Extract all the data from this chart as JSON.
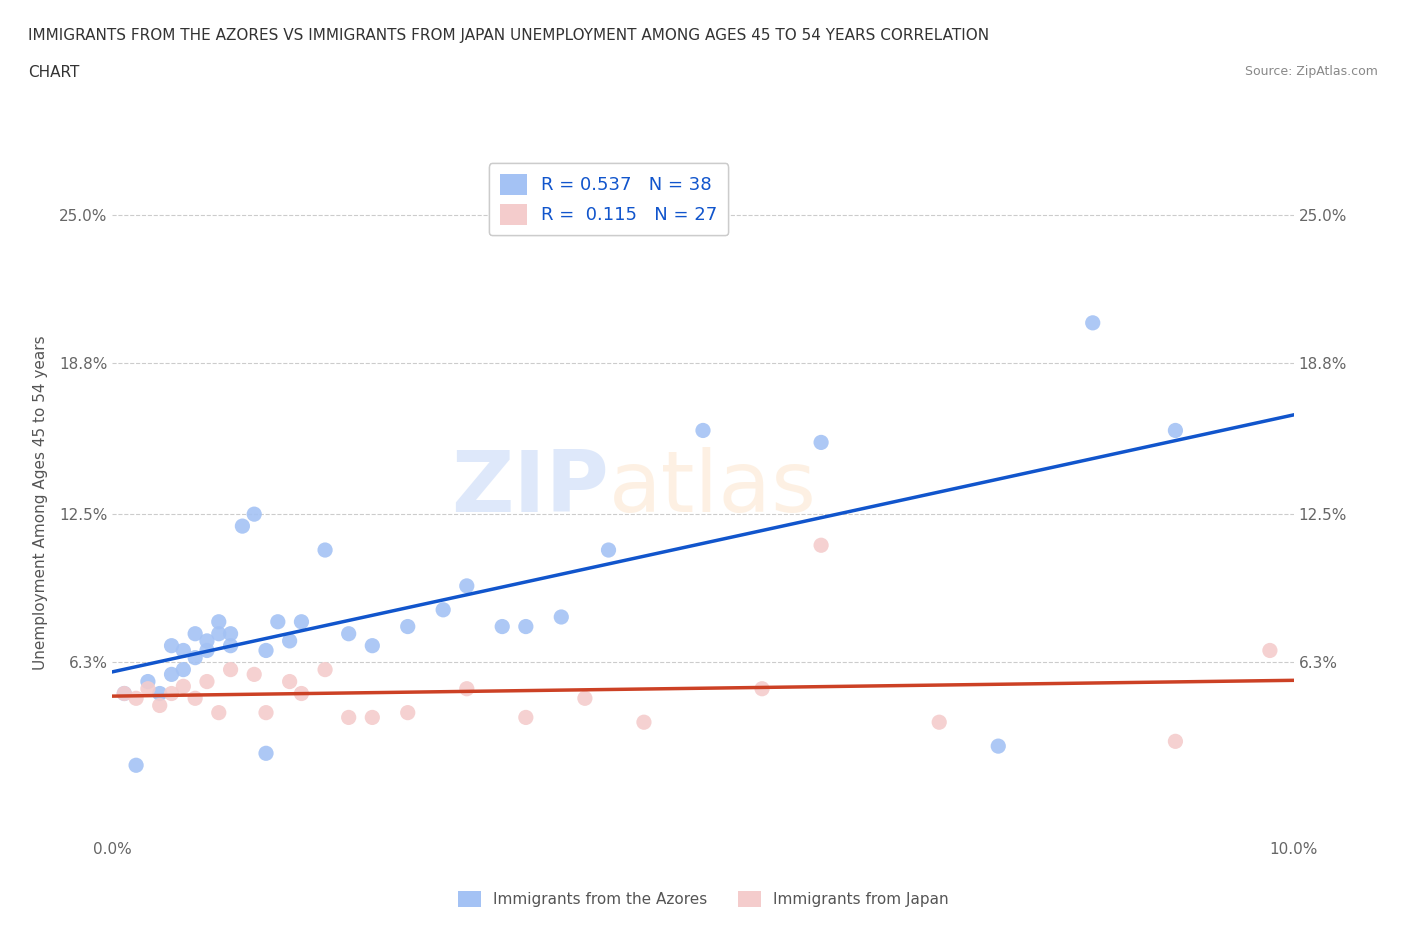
{
  "title_line1": "IMMIGRANTS FROM THE AZORES VS IMMIGRANTS FROM JAPAN UNEMPLOYMENT AMONG AGES 45 TO 54 YEARS CORRELATION",
  "title_line2": "CHART",
  "source": "Source: ZipAtlas.com",
  "ylabel": "Unemployment Among Ages 45 to 54 years",
  "xlim": [
    0.0,
    0.1
  ],
  "ylim": [
    -0.01,
    0.27
  ],
  "xticks": [
    0.0,
    0.02,
    0.04,
    0.06,
    0.08,
    0.1
  ],
  "xticklabels": [
    "0.0%",
    "",
    "",
    "",
    "",
    "10.0%"
  ],
  "ytick_positions": [
    0.063,
    0.125,
    0.188,
    0.25
  ],
  "ytick_labels": [
    "6.3%",
    "12.5%",
    "18.8%",
    "25.0%"
  ],
  "R_azores": 0.537,
  "N_azores": 38,
  "R_japan": 0.115,
  "N_japan": 27,
  "color_azores": "#a4c2f4",
  "color_japan": "#f4cccc",
  "line_color_azores": "#1155cc",
  "line_color_japan": "#cc4125",
  "legend_label_azores": "Immigrants from the Azores",
  "legend_label_japan": "Immigrants from Japan",
  "azores_x": [
    0.001,
    0.002,
    0.003,
    0.004,
    0.005,
    0.005,
    0.006,
    0.006,
    0.007,
    0.007,
    0.008,
    0.008,
    0.009,
    0.009,
    0.01,
    0.01,
    0.011,
    0.012,
    0.013,
    0.013,
    0.014,
    0.015,
    0.016,
    0.018,
    0.02,
    0.022,
    0.025,
    0.028,
    0.03,
    0.033,
    0.035,
    0.038,
    0.042,
    0.05,
    0.06,
    0.075,
    0.083,
    0.09
  ],
  "azores_y": [
    0.05,
    0.02,
    0.055,
    0.05,
    0.058,
    0.07,
    0.06,
    0.068,
    0.065,
    0.075,
    0.072,
    0.068,
    0.075,
    0.08,
    0.07,
    0.075,
    0.12,
    0.125,
    0.068,
    0.025,
    0.08,
    0.072,
    0.08,
    0.11,
    0.075,
    0.07,
    0.078,
    0.085,
    0.095,
    0.078,
    0.078,
    0.082,
    0.11,
    0.16,
    0.155,
    0.028,
    0.205,
    0.16
  ],
  "japan_x": [
    0.001,
    0.002,
    0.003,
    0.004,
    0.005,
    0.006,
    0.007,
    0.008,
    0.009,
    0.01,
    0.012,
    0.013,
    0.015,
    0.016,
    0.018,
    0.02,
    0.022,
    0.025,
    0.03,
    0.035,
    0.04,
    0.045,
    0.055,
    0.06,
    0.07,
    0.09,
    0.098
  ],
  "japan_y": [
    0.05,
    0.048,
    0.052,
    0.045,
    0.05,
    0.053,
    0.048,
    0.055,
    0.042,
    0.06,
    0.058,
    0.042,
    0.055,
    0.05,
    0.06,
    0.04,
    0.04,
    0.042,
    0.052,
    0.04,
    0.048,
    0.038,
    0.052,
    0.112,
    0.038,
    0.03,
    0.068
  ]
}
